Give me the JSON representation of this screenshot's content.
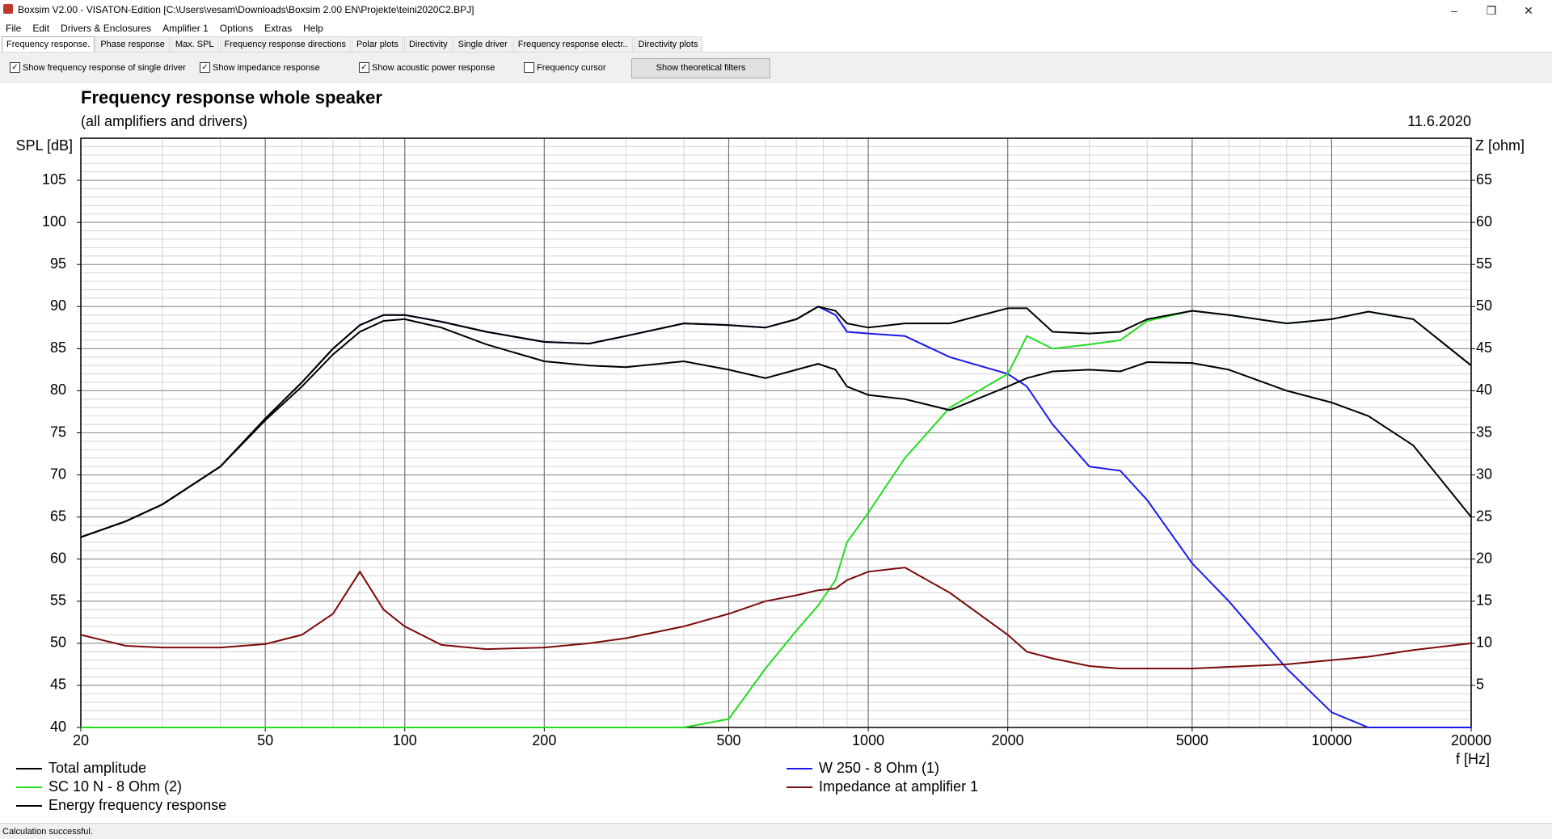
{
  "window": {
    "title": "Boxsim V2.00 - VISATON-Edition [C:\\Users\\vesam\\Downloads\\Boxsim 2.00 EN\\Projekte\\teini2020C2.BPJ]"
  },
  "menu": [
    "File",
    "Edit",
    "Drivers & Enclosures",
    "Amplifier 1",
    "Options",
    "Extras",
    "Help"
  ],
  "tabs": [
    "Frequency response.",
    "Phase response",
    "Max. SPL",
    "Frequency response directions",
    "Polar plots",
    "Directivity",
    "Single driver",
    "Frequency response electr..",
    "Directivity plots"
  ],
  "toolbar": {
    "checkboxes": [
      {
        "label": "Show frequency response of single driver",
        "checked": true
      },
      {
        "label": "Show impedance response",
        "checked": true
      },
      {
        "label": "Show acoustic power response",
        "checked": true
      },
      {
        "label": "Frequency cursor",
        "checked": false
      }
    ],
    "button": "Show theoretical filters"
  },
  "chart_data": {
    "type": "line",
    "title": "Frequency response whole speaker",
    "subtitle": "(all amplifiers and drivers)",
    "date": "11.6.2020",
    "x_label": "f [Hz]",
    "y_label": "SPL [dB]",
    "y2_label": "Z [ohm]",
    "log_x": true,
    "grid": true,
    "xlim": [
      20,
      20000
    ],
    "xticks": [
      20,
      50,
      100,
      200,
      500,
      1000,
      2000,
      5000,
      10000,
      20000
    ],
    "ylim": [
      40,
      110
    ],
    "yticks": [
      40,
      45,
      50,
      55,
      60,
      65,
      70,
      75,
      80,
      85,
      90,
      95,
      100,
      105
    ],
    "y2lim": [
      0,
      70
    ],
    "y2ticks": [
      5,
      10,
      15,
      20,
      25,
      30,
      35,
      40,
      45,
      50,
      55,
      60,
      65
    ],
    "x": [
      20,
      25,
      30,
      40,
      50,
      60,
      70,
      80,
      90,
      100,
      120,
      150,
      200,
      250,
      300,
      400,
      500,
      600,
      700,
      780,
      850,
      900,
      1000,
      1200,
      1500,
      2000,
      2200,
      2500,
      3000,
      3500,
      4000,
      5000,
      6000,
      8000,
      10000,
      12000,
      15000,
      20000
    ],
    "series": [
      {
        "name": "Total amplitude",
        "color": "#000000",
        "values": [
          62.6,
          64.5,
          66.5,
          71,
          76.7,
          81,
          85,
          87.8,
          89,
          89,
          88.2,
          87,
          85.8,
          85.6,
          86.5,
          88,
          87.8,
          87.5,
          88.5,
          90,
          89.5,
          88,
          87.5,
          88,
          88,
          89.8,
          89.8,
          87,
          86.8,
          87,
          88.5,
          89.5,
          89,
          88,
          88.5,
          89.4,
          88.5,
          83
        ]
      },
      {
        "name": "W 250 - 8 Ohm (1)",
        "color": "#1a1aee",
        "values": [
          62.6,
          64.5,
          66.5,
          71,
          76.7,
          81,
          85,
          87.8,
          89,
          89,
          88.2,
          87,
          85.8,
          85.6,
          86.5,
          88,
          87.8,
          87.5,
          88.5,
          90,
          89,
          87,
          86.8,
          86.5,
          84,
          82,
          80.5,
          76,
          71,
          70.5,
          67,
          59.5,
          55,
          47,
          41.8,
          40,
          40,
          40
        ]
      },
      {
        "name": "SC 10 N - 8 Ohm (2)",
        "color": "#22dd22",
        "values": [
          40,
          40,
          40,
          40,
          40,
          40,
          40,
          40,
          40,
          40,
          40,
          40,
          40,
          40,
          40,
          40,
          41,
          47,
          51.5,
          54.5,
          57.5,
          62,
          65.5,
          72,
          78,
          82,
          86.5,
          85,
          85.5,
          86,
          88.3,
          89.5,
          89,
          88,
          88.5,
          89.4,
          88.5,
          83
        ]
      },
      {
        "name": "Energy frequency response",
        "color": "#000000",
        "values": [
          62.6,
          64.5,
          66.5,
          71,
          76.5,
          80.5,
          84.3,
          87,
          88.3,
          88.5,
          87.5,
          85.5,
          83.5,
          83,
          82.8,
          83.5,
          82.5,
          81.5,
          82.5,
          83.2,
          82.5,
          80.5,
          79.5,
          79,
          77.7,
          80.5,
          81.5,
          82.3,
          82.5,
          82.3,
          83.4,
          83.3,
          82.5,
          80,
          78.6,
          77,
          73.5,
          65
        ]
      },
      {
        "name": "Impedance at amplifier 1",
        "color": "#7b0a0a",
        "axis": "y2",
        "values": [
          11,
          9.7,
          9.5,
          9.5,
          9.9,
          11,
          13.5,
          18.5,
          14,
          12,
          9.8,
          9.3,
          9.5,
          10,
          10.6,
          12,
          13.5,
          15,
          15.7,
          16.3,
          16.5,
          17.5,
          18.5,
          19,
          16,
          11,
          9,
          8.2,
          7.3,
          7,
          7,
          7,
          7.2,
          7.5,
          8,
          8.4,
          9.2,
          10
        ]
      }
    ]
  },
  "status": "Calculation successful."
}
